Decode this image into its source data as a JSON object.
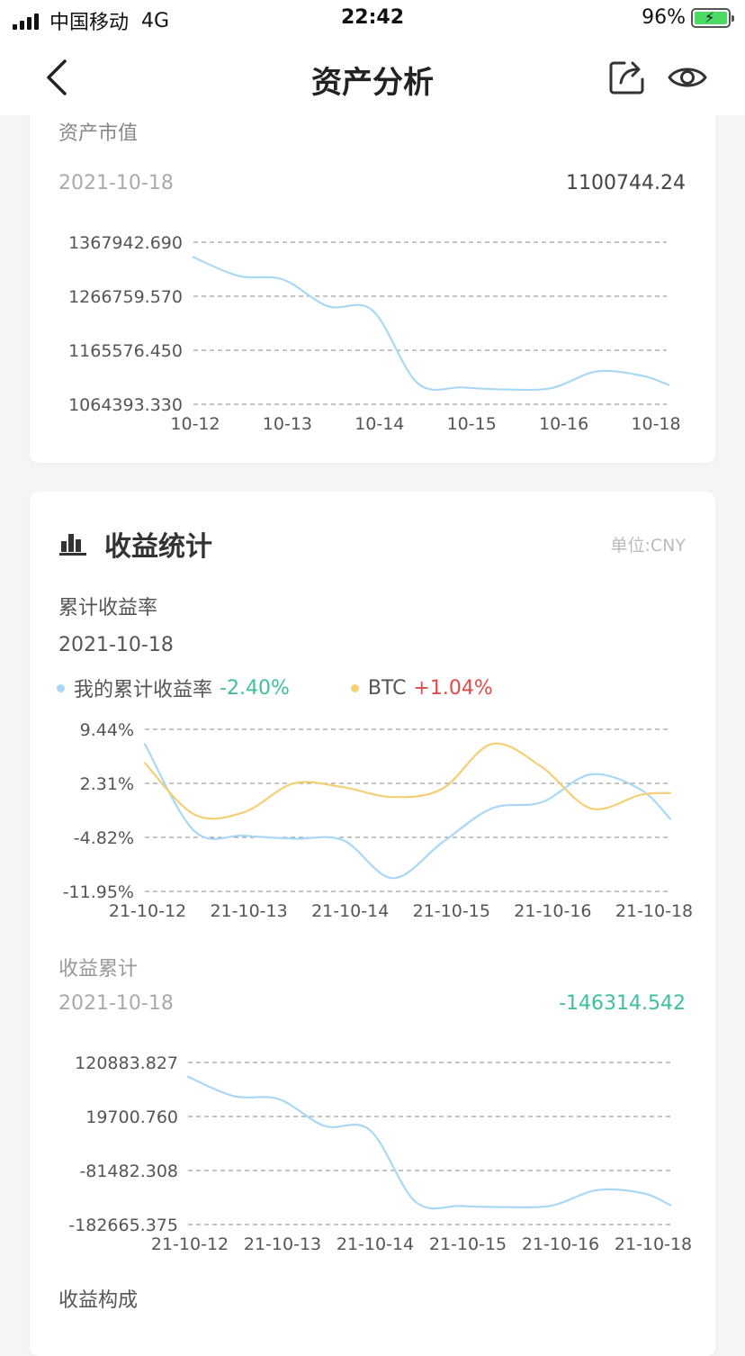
{
  "status_bar": {
    "carrier": "中国移动",
    "network": "4G",
    "time": "22:42",
    "battery": "96%"
  },
  "nav": {
    "title": "资产分析"
  },
  "asset_card": {
    "title": "资产市值",
    "date": "2021-10-18",
    "value": "1100744.24"
  },
  "income_card": {
    "title": "收益统计",
    "unit": "单位:CNY",
    "cum_rate_title": "累计收益率",
    "cum_rate_date": "2021-10-18",
    "legend_mine": "我的累计收益率",
    "legend_mine_value": "-2.40%",
    "legend_btc": "BTC",
    "legend_btc_value": "+1.04%",
    "cum_income_title": "收益累计",
    "cum_income_date": "2021-10-18",
    "cum_income_value": "-146314.542",
    "composition_title": "收益构成"
  },
  "colors": {
    "blue": "#a9d8f5",
    "orange": "#f5cf76",
    "green": "#3fbf9b",
    "red": "#e04a4a"
  },
  "chart_data": [
    {
      "type": "line",
      "x": [
        "10-12",
        "10-13",
        "10-14",
        "10-15",
        "10-16",
        "10-18"
      ],
      "yticks": [
        "1367942.690",
        "1266759.570",
        "1165576.450",
        "1064393.330"
      ],
      "ylim": [
        1064393.33,
        1367942.69
      ],
      "series": [
        {
          "color": "#a9d8f5",
          "points": [
            [
              0,
              1340000
            ],
            [
              0.5,
              1305000
            ],
            [
              1,
              1298000
            ],
            [
              1.5,
              1248000
            ],
            [
              2,
              1240000
            ],
            [
              2.5,
              1104000
            ],
            [
              3,
              1096000
            ],
            [
              3.5,
              1092000
            ],
            [
              4,
              1095000
            ],
            [
              4.5,
              1126000
            ],
            [
              5,
              1118000
            ],
            [
              5.3,
              1100744
            ]
          ]
        }
      ],
      "grid": true
    },
    {
      "type": "line",
      "x": [
        "21-10-12",
        "21-10-13",
        "21-10-14",
        "21-10-15",
        "21-10-16",
        "21-10-18"
      ],
      "yticks": [
        "9.44%",
        "2.31%",
        "-4.82%",
        "-11.95%"
      ],
      "ylim": [
        -11.95,
        9.44
      ],
      "series": [
        {
          "name": "我的累计收益率",
          "color": "#a9d8f5",
          "points": [
            [
              0,
              7.5
            ],
            [
              0.5,
              -4.0
            ],
            [
              1,
              -4.6
            ],
            [
              1.5,
              -5.0
            ],
            [
              2,
              -5.2
            ],
            [
              2.5,
              -10.2
            ],
            [
              3,
              -5.5
            ],
            [
              3.5,
              -1.0
            ],
            [
              4,
              -0.2
            ],
            [
              4.5,
              3.5
            ],
            [
              5,
              1.5
            ],
            [
              5.3,
              -2.4
            ]
          ]
        },
        {
          "name": "BTC",
          "color": "#f5cf76",
          "points": [
            [
              0,
              5.0
            ],
            [
              0.5,
              -1.8
            ],
            [
              1,
              -1.5
            ],
            [
              1.5,
              2.3
            ],
            [
              2,
              1.8
            ],
            [
              2.5,
              0.5
            ],
            [
              3,
              1.6
            ],
            [
              3.5,
              7.5
            ],
            [
              4,
              4.5
            ],
            [
              4.5,
              -1.0
            ],
            [
              5,
              0.8
            ],
            [
              5.3,
              1.04
            ]
          ]
        }
      ],
      "grid": true
    },
    {
      "type": "line",
      "x": [
        "21-10-12",
        "21-10-13",
        "21-10-14",
        "21-10-15",
        "21-10-16",
        "21-10-18"
      ],
      "yticks": [
        "120883.827",
        "19700.760",
        "-81482.308",
        "-182665.375"
      ],
      "ylim": [
        -182665.375,
        120883.827
      ],
      "series": [
        {
          "color": "#a9d8f5",
          "points": [
            [
              0,
              94000
            ],
            [
              0.5,
              58000
            ],
            [
              1,
              52000
            ],
            [
              1.5,
              2000
            ],
            [
              2,
              -6000
            ],
            [
              2.5,
              -140000
            ],
            [
              3,
              -148000
            ],
            [
              3.5,
              -150000
            ],
            [
              4,
              -147000
            ],
            [
              4.5,
              -118000
            ],
            [
              5,
              -124000
            ],
            [
              5.3,
              -146314
            ]
          ]
        }
      ],
      "grid": true
    }
  ]
}
